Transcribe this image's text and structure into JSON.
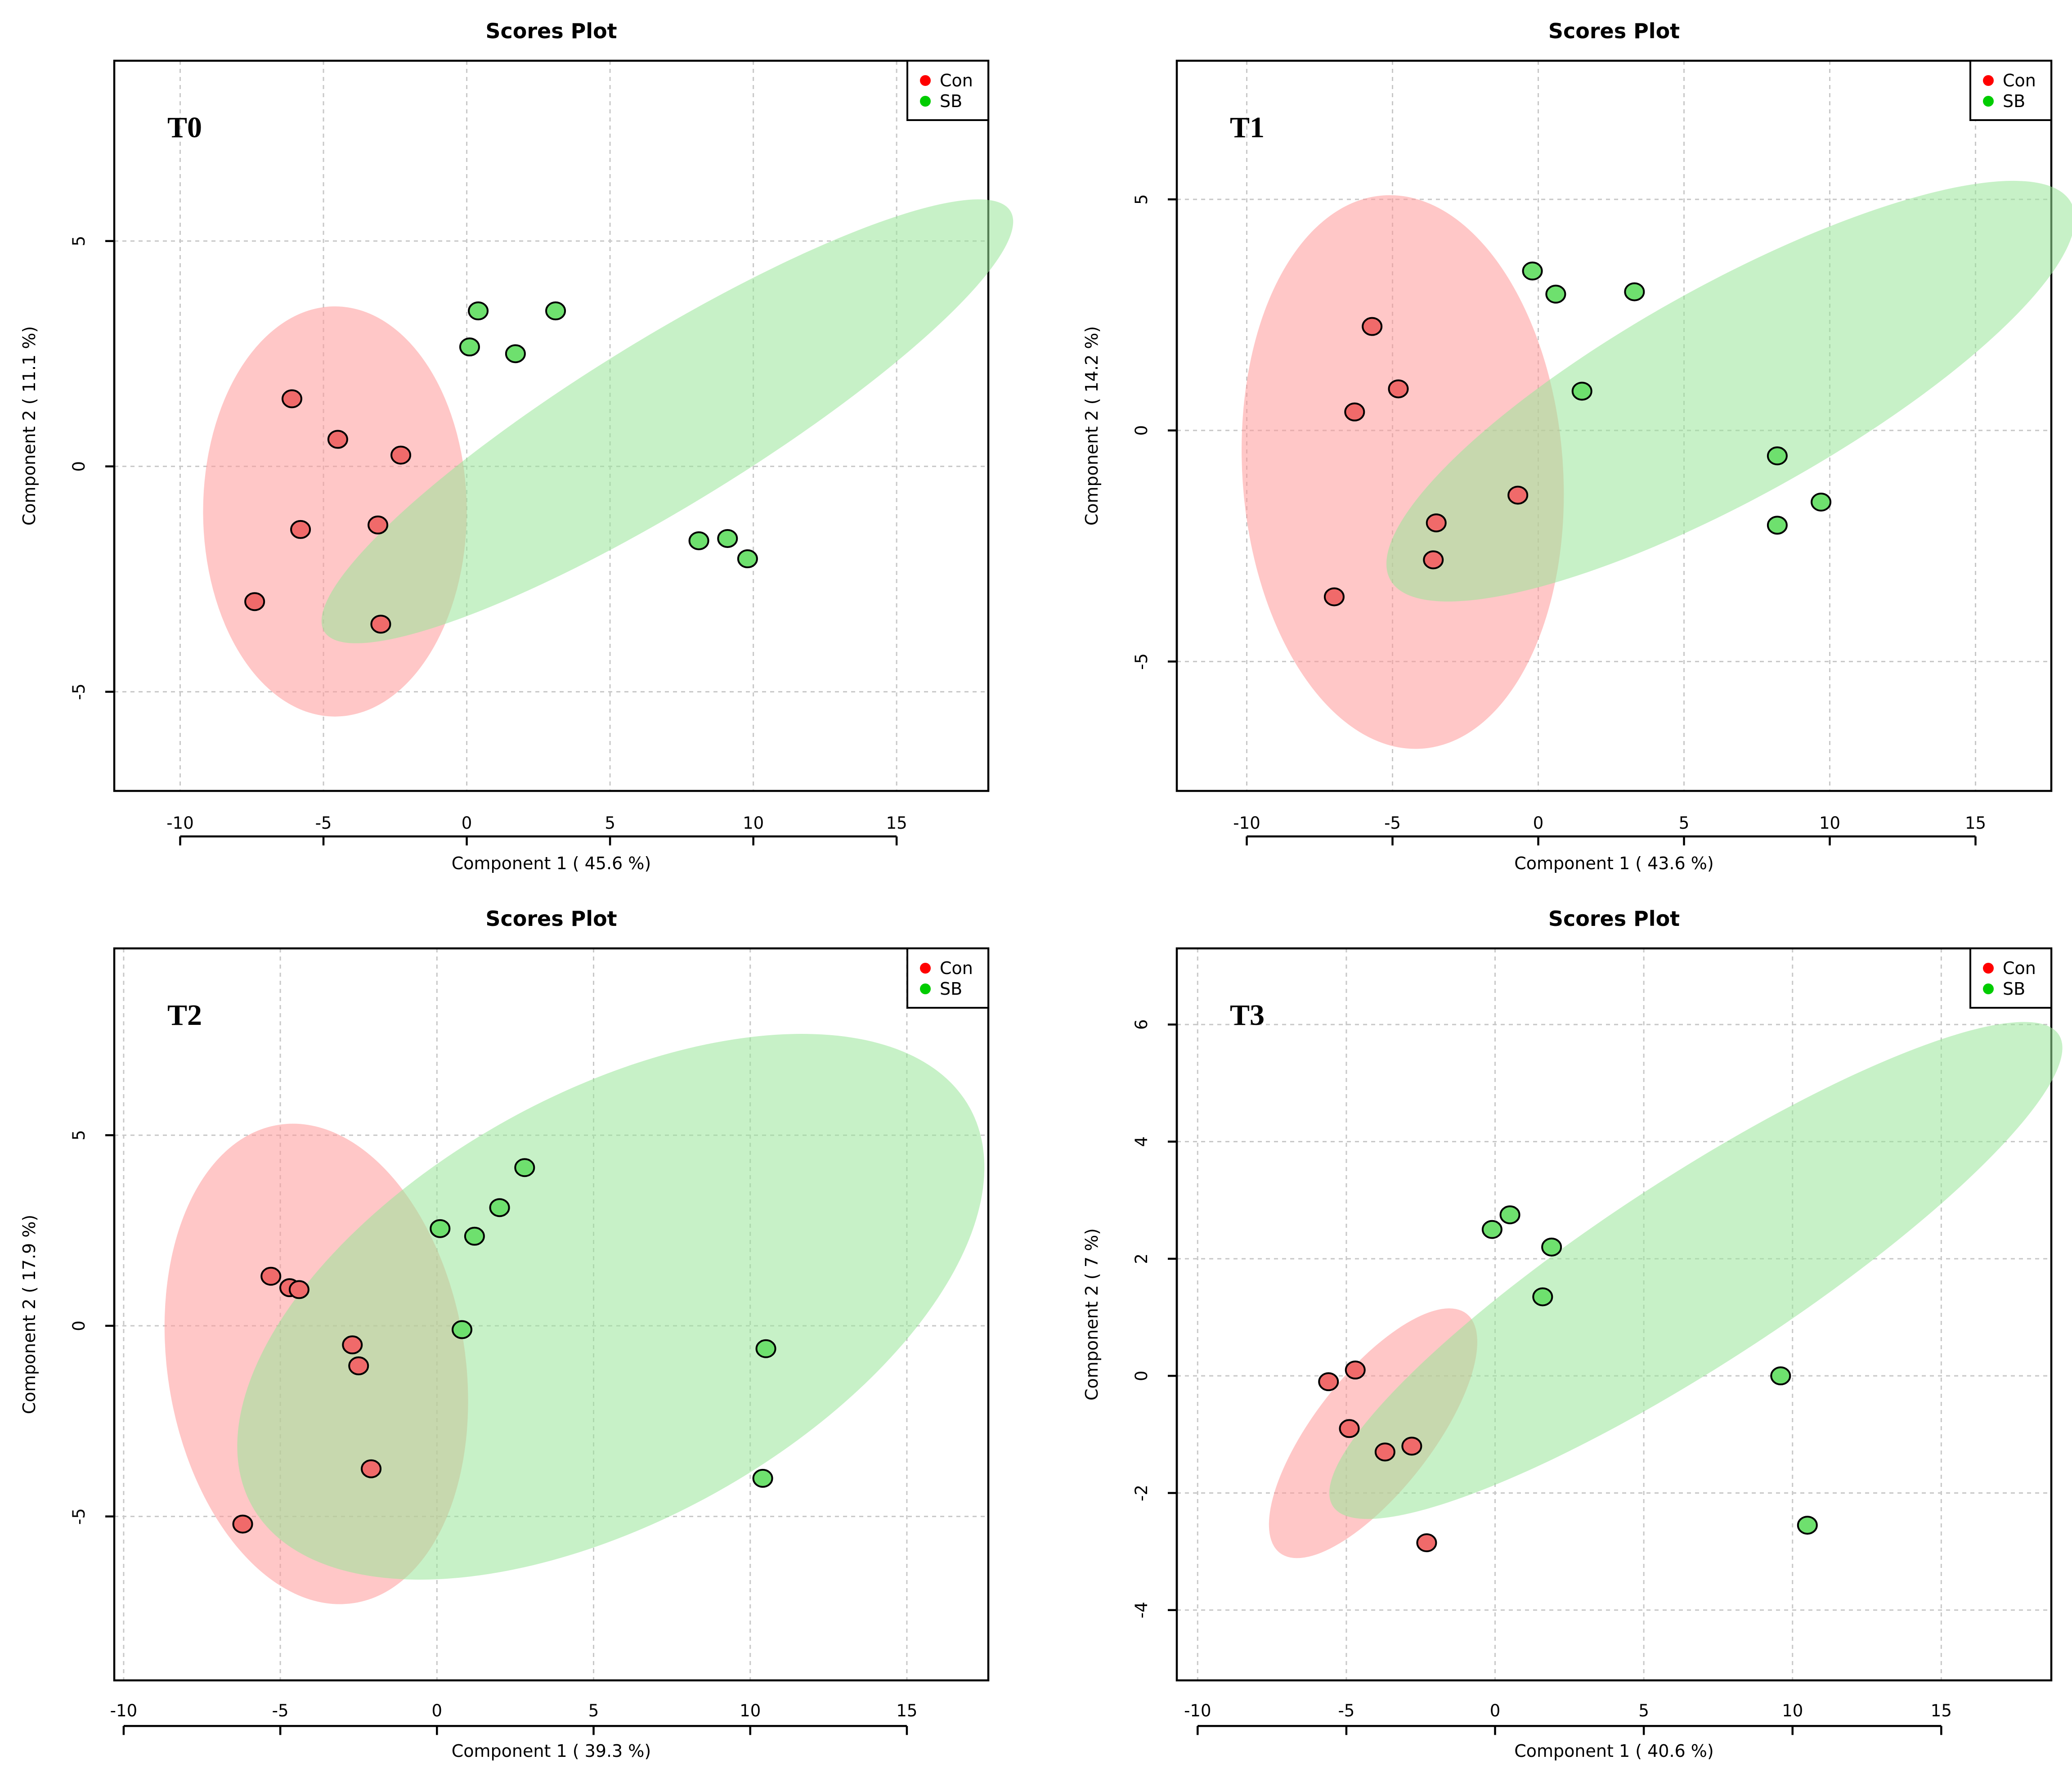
{
  "colors": {
    "con_point": "#f06a6a",
    "sb_point": "#6ee06e",
    "con_legend": "#ff0000",
    "sb_legend": "#00cc00",
    "con_ellipse": "#ff9999",
    "sb_ellipse": "#99e699"
  },
  "chart_data": [
    {
      "type": "scatter",
      "panel_label": "T0",
      "title": "Scores Plot",
      "xlabel": "Component 1 ( 45.6 %)",
      "ylabel": "Component 2 ( 11.1 %)",
      "xlim": [
        -12.3,
        18.2
      ],
      "ylim": [
        -7.2,
        9.0
      ],
      "xticks": [
        -10,
        -5,
        0,
        5,
        10,
        15
      ],
      "xtick_labels": [
        "-10",
        "-5",
        "0",
        "5",
        "10",
        "15"
      ],
      "yticks": [
        -5,
        0,
        5
      ],
      "ytick_labels": [
        "-5",
        "0",
        "5"
      ],
      "legend": [
        "Con",
        "SB"
      ],
      "legend_position": "top-right",
      "grid": true,
      "series": [
        {
          "name": "Con",
          "x": [
            -6.1,
            -4.5,
            -2.3,
            -5.8,
            -3.1,
            -7.4,
            -3.0
          ],
          "y": [
            1.5,
            0.6,
            0.25,
            -1.4,
            -1.3,
            -3.0,
            -3.5
          ],
          "ellipse": {
            "cx": -4.6,
            "cy": -1.0,
            "rx": 4.6,
            "ry": 4.55,
            "angle": 0
          }
        },
        {
          "name": "SB",
          "x": [
            0.4,
            3.1,
            0.1,
            1.7,
            8.1,
            9.1,
            9.8
          ],
          "y": [
            3.45,
            3.45,
            2.65,
            2.5,
            -1.65,
            -1.6,
            -2.05
          ],
          "ellipse": {
            "cx": 7.0,
            "cy": 1.0,
            "rx": 14.04,
            "ry": 1.85,
            "angle": -31.5
          }
        }
      ]
    },
    {
      "type": "scatter",
      "panel_label": "T1",
      "title": "Scores Plot",
      "xlabel": "Component 1 ( 43.6 %)",
      "ylabel": "Component 2 ( 14.2 %)",
      "xlim": [
        -12.4,
        17.6
      ],
      "ylim": [
        -7.8,
        8.0
      ],
      "xticks": [
        -10,
        -5,
        0,
        5,
        10,
        15
      ],
      "xtick_labels": [
        "-10",
        "-5",
        "0",
        "5",
        "10",
        "15"
      ],
      "yticks": [
        -5,
        0,
        5
      ],
      "ytick_labels": [
        "-5",
        "0",
        "5"
      ],
      "legend": [
        "Con",
        "SB"
      ],
      "legend_position": "top-right",
      "grid": true,
      "series": [
        {
          "name": "Con",
          "x": [
            -5.7,
            -4.8,
            -6.3,
            -0.7,
            -3.5,
            -3.6,
            -7.0
          ],
          "y": [
            2.25,
            0.9,
            0.4,
            -1.4,
            -2.0,
            -2.8,
            -3.6
          ],
          "ellipse": {
            "cx": -4.65,
            "cy": -0.9,
            "rx": 5.5,
            "ry": 6.0,
            "angle": -4
          }
        },
        {
          "name": "SB",
          "x": [
            -0.2,
            0.6,
            3.3,
            1.5,
            8.2,
            9.7,
            8.2
          ],
          "y": [
            3.45,
            2.95,
            3.0,
            0.85,
            -0.55,
            -1.55,
            -2.05
          ],
          "ellipse": {
            "cx": 6.6,
            "cy": 0.85,
            "rx": 13.35,
            "ry": 2.3,
            "angle": -29
          }
        }
      ]
    },
    {
      "type": "scatter",
      "panel_label": "T2",
      "title": "Scores Plot",
      "xlabel": "Component 1 ( 39.3 %)",
      "ylabel": "Component 2 ( 17.9 %)",
      "xlim": [
        -10.3,
        17.6
      ],
      "ylim": [
        -9.3,
        9.9
      ],
      "xticks": [
        -10,
        -5,
        0,
        5,
        10,
        15
      ],
      "xtick_labels": [
        "-10",
        "-5",
        "0",
        "5",
        "10",
        "15"
      ],
      "yticks": [
        -5,
        0,
        5
      ],
      "ytick_labels": [
        "-5",
        "0",
        "5"
      ],
      "legend": [
        "Con",
        "SB"
      ],
      "legend_position": "top-right",
      "grid": true,
      "series": [
        {
          "name": "Con",
          "x": [
            -5.3,
            -4.7,
            -4.4,
            -2.7,
            -2.5,
            -2.1,
            -6.2
          ],
          "y": [
            1.3,
            1.0,
            0.95,
            -0.5,
            -1.05,
            -3.75,
            -5.2
          ],
          "ellipse": {
            "cx": -3.85,
            "cy": -1.0,
            "rx": 4.75,
            "ry": 6.35,
            "angle": -9
          }
        },
        {
          "name": "SB",
          "x": [
            2.8,
            2.0,
            0.1,
            1.2,
            0.8,
            10.5,
            10.4
          ],
          "y": [
            4.15,
            3.1,
            2.55,
            2.35,
            -0.1,
            -0.6,
            -4.0
          ],
          "ellipse": {
            "cx": 5.55,
            "cy": 0.5,
            "rx": 13.1,
            "ry": 5.6,
            "angle": -29
          }
        }
      ]
    },
    {
      "type": "scatter",
      "panel_label": "T3",
      "title": "Scores Plot",
      "xlabel": "Component 1 ( 40.6 %)",
      "ylabel": "Component 2 ( 7 %)",
      "xlim": [
        -10.7,
        18.7
      ],
      "ylim": [
        -5.2,
        7.3
      ],
      "xticks": [
        -10,
        -5,
        0,
        5,
        10,
        15
      ],
      "xtick_labels": [
        "-10",
        "-5",
        "0",
        "5",
        "10",
        "15"
      ],
      "yticks": [
        -4,
        -2,
        0,
        2,
        4,
        6
      ],
      "ytick_labels": [
        "-4",
        "-2",
        "0",
        "2",
        "4",
        "6"
      ],
      "legend": [
        "Con",
        "SB"
      ],
      "legend_position": "top-right",
      "grid": true,
      "series": [
        {
          "name": "Con",
          "x": [
            -5.6,
            -4.7,
            -4.9,
            -3.7,
            -2.8,
            -2.3
          ],
          "y": [
            -0.1,
            0.1,
            -0.9,
            -1.3,
            -1.2,
            -2.85
          ],
          "ellipse": {
            "cx": -4.1,
            "cy": -0.98,
            "rx": 5.1,
            "ry": 1.0,
            "angle": -52
          }
        },
        {
          "name": "SB",
          "x": [
            -0.1,
            0.5,
            1.9,
            1.6,
            9.6,
            10.5
          ],
          "y": [
            2.5,
            2.75,
            2.2,
            1.35,
            0.0,
            -2.55
          ],
          "ellipse": {
            "cx": 6.75,
            "cy": 1.8,
            "rx": 14.55,
            "ry": 1.6,
            "angle": -33
          }
        }
      ]
    }
  ]
}
